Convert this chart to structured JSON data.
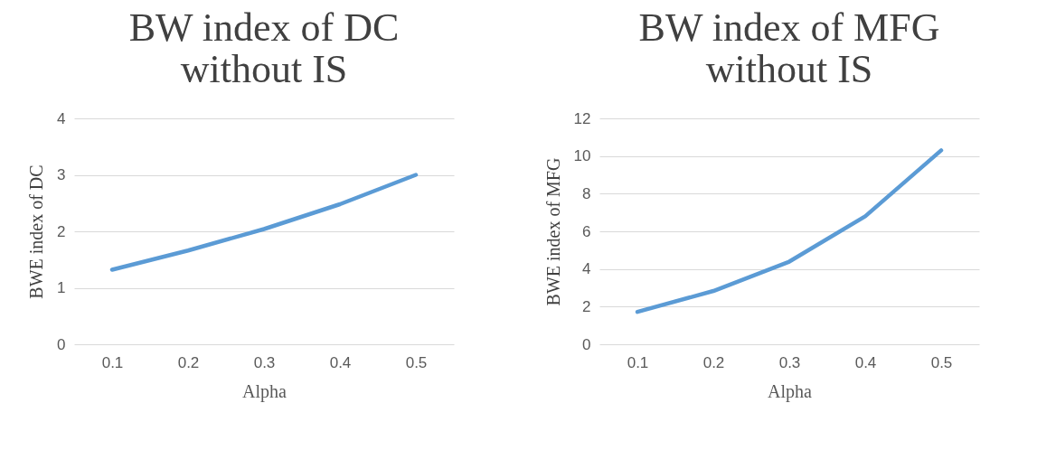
{
  "chart_data": [
    {
      "type": "line",
      "title": [
        "BW index of DC",
        "without IS"
      ],
      "xlabel": "Alpha",
      "ylabel": "BWE index  of DC",
      "categories": [
        "0.1",
        "0.2",
        "0.3",
        "0.4",
        "0.5"
      ],
      "series": [
        {
          "color": "#5b9bd5",
          "values": [
            1.32,
            1.66,
            2.04,
            2.48,
            3.0
          ]
        }
      ],
      "ylim": [
        0,
        4
      ],
      "yticks": [
        0,
        1,
        2,
        3,
        4
      ],
      "grid": "y",
      "marker": "none",
      "line_style": "solid"
    },
    {
      "type": "line",
      "title": [
        "BW index of MFG",
        "without IS"
      ],
      "xlabel": "Alpha",
      "ylabel": "BWE index  of MFG",
      "categories": [
        "0.1",
        "0.2",
        "0.3",
        "0.4",
        "0.5"
      ],
      "series": [
        {
          "color": "#5b9bd5",
          "values": [
            1.72,
            2.83,
            4.39,
            6.8,
            10.3
          ]
        }
      ],
      "ylim": [
        0,
        12
      ],
      "yticks": [
        0,
        2,
        4,
        6,
        8,
        10,
        12
      ],
      "grid": "y",
      "marker": "none",
      "line_style": "solid"
    }
  ]
}
